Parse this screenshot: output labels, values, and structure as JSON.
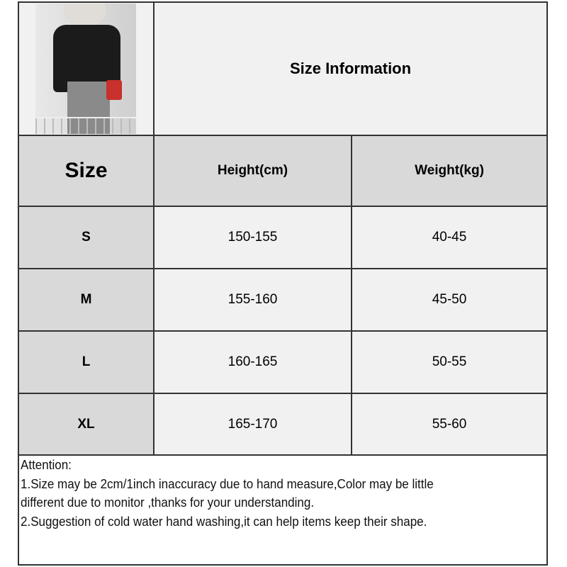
{
  "title": "Size Information",
  "photo_alt": "Model wearing black short-sleeve top with gray skirt",
  "headers": {
    "size": "Size",
    "height": "Height(cm)",
    "weight": "Weight(kg)"
  },
  "rows": [
    {
      "size": "S",
      "height": "150-155",
      "weight": "40-45"
    },
    {
      "size": "M",
      "height": "155-160",
      "weight": "45-50"
    },
    {
      "size": "L",
      "height": "160-165",
      "weight": "50-55"
    },
    {
      "size": "XL",
      "height": "165-170",
      "weight": "55-60"
    }
  ],
  "notes": {
    "heading": "Attention:",
    "line1": "1.Size may be 2cm/1inch inaccuracy due to hand measure,Color may be little",
    "line1b": "different due to monitor ,thanks for your understanding.",
    "line2": "2.Suggestion of cold water hand washing,it can help items keep their shape."
  },
  "colors": {
    "header_bg": "#d9d9d9",
    "cell_bg": "#f1f1f1",
    "border": "#333333"
  }
}
